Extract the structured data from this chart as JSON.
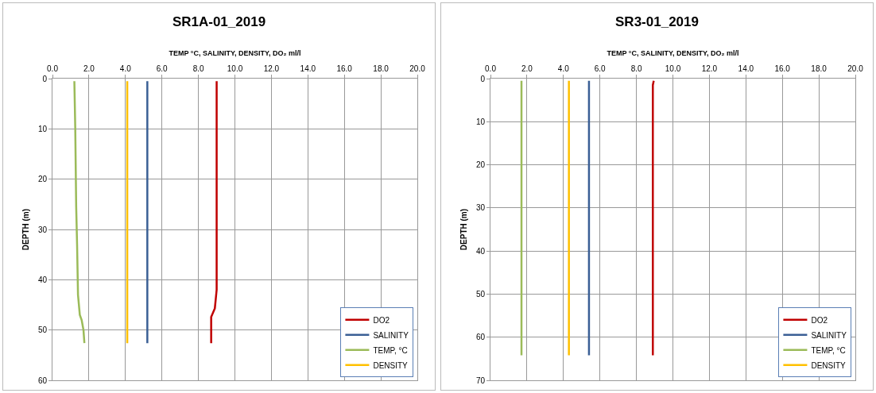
{
  "chart_data": [
    {
      "type": "line",
      "title": "SR1A-01_2019",
      "xlabel": "TEMP °C, SALINITY, DENSITY, DO₂ ml/l",
      "ylabel": "DEPTH (m)",
      "xlim": [
        0,
        20
      ],
      "xticks": [
        {
          "value": 0,
          "label": "0.0"
        },
        {
          "value": 2,
          "label": "2.0"
        },
        {
          "value": 4,
          "label": "4.0"
        },
        {
          "value": 6,
          "label": "6.0"
        },
        {
          "value": 8,
          "label": "8.0"
        },
        {
          "value": 10,
          "label": "10.0"
        },
        {
          "value": 12,
          "label": "12.0"
        },
        {
          "value": 14,
          "label": "14.0"
        },
        {
          "value": 16,
          "label": "16.0"
        },
        {
          "value": 18,
          "label": "18.0"
        },
        {
          "value": 20,
          "label": "20.0"
        }
      ],
      "ylim": [
        60,
        0
      ],
      "yticks": [
        0,
        10,
        20,
        30,
        40,
        50,
        60
      ],
      "grid": true,
      "legend": "bottom right",
      "marker": "none",
      "line_style": "solid",
      "series": [
        {
          "name": "DO2",
          "color": "#c00000",
          "x": [
            9.0,
            9.0,
            9.0,
            9.0,
            9.0,
            8.9,
            8.7,
            8.7
          ],
          "values": [
            0.5,
            10,
            20,
            30,
            42,
            45.7,
            47.4,
            52.6
          ]
        },
        {
          "name": "SALINITY",
          "color": "#3a5f95",
          "x": [
            5.2,
            5.2,
            5.2
          ],
          "values": [
            0.5,
            26,
            52.6
          ]
        },
        {
          "name": "TEMP, °C",
          "color": "#9bbb59",
          "x": [
            1.2,
            1.25,
            1.3,
            1.35,
            1.4,
            1.5,
            1.6,
            1.7,
            1.75
          ],
          "values": [
            0.5,
            10,
            25.5,
            33,
            43,
            47,
            48,
            50,
            52.6
          ]
        },
        {
          "name": "DENSITY",
          "color": "#ffc000",
          "x": [
            4.1,
            4.1,
            4.1
          ],
          "values": [
            0.5,
            26,
            52.6
          ]
        }
      ]
    },
    {
      "type": "line",
      "title": "SR3-01_2019",
      "xlabel": "TEMP °C, SALINITY, DENSITY, DO₂ ml/l",
      "ylabel": "DEPTH (m)",
      "xlim": [
        0,
        20
      ],
      "xticks": [
        {
          "value": 0,
          "label": "0.0"
        },
        {
          "value": 2,
          "label": "2.0"
        },
        {
          "value": 4,
          "label": "4.0"
        },
        {
          "value": 6,
          "label": "6.0"
        },
        {
          "value": 8,
          "label": "8.0"
        },
        {
          "value": 10,
          "label": "10.0"
        },
        {
          "value": 12,
          "label": "12.0"
        },
        {
          "value": 14,
          "label": "14.0"
        },
        {
          "value": 16,
          "label": "16.0"
        },
        {
          "value": 18,
          "label": "18.0"
        },
        {
          "value": 20,
          "label": "20.0"
        }
      ],
      "ylim": [
        70,
        0
      ],
      "yticks": [
        0,
        10,
        20,
        30,
        40,
        50,
        60,
        70
      ],
      "grid": true,
      "legend": "bottom right",
      "marker": "none",
      "line_style": "solid",
      "series": [
        {
          "name": "DO2",
          "color": "#c00000",
          "x": [
            8.95,
            8.9,
            8.9,
            8.9
          ],
          "values": [
            0.5,
            1.5,
            30,
            64.2
          ]
        },
        {
          "name": "SALINITY",
          "color": "#3a5f95",
          "x": [
            5.4,
            5.4,
            5.4
          ],
          "values": [
            0.5,
            32,
            64.2
          ]
        },
        {
          "name": "TEMP, °C",
          "color": "#9bbb59",
          "x": [
            1.7,
            1.7,
            1.7
          ],
          "values": [
            0.5,
            32,
            64.2
          ]
        },
        {
          "name": "DENSITY",
          "color": "#ffc000",
          "x": [
            4.3,
            4.3,
            4.3
          ],
          "values": [
            0.5,
            32,
            64.2
          ]
        }
      ]
    }
  ]
}
